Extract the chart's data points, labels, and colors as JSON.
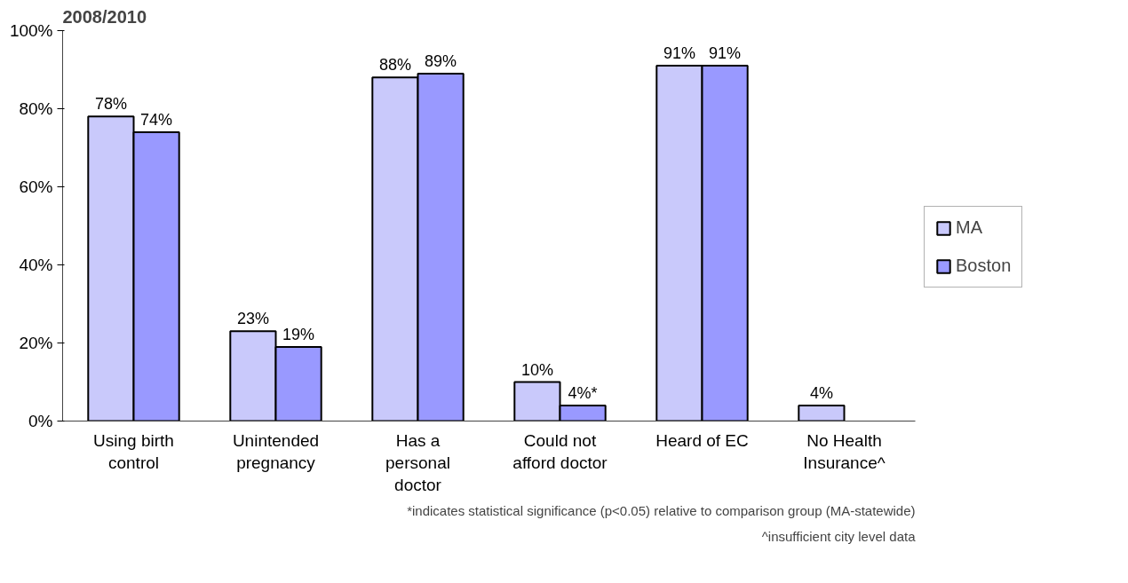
{
  "chart_data": {
    "type": "bar",
    "title": "2008/2010",
    "categories": [
      "Using birth control",
      "Unintended pregnancy",
      "Has a personal doctor",
      "Could not afford doctor",
      "Heard of EC",
      "No Health Insurance^"
    ],
    "series": [
      {
        "name": "MA",
        "color": "#c9c9fb",
        "values": [
          78,
          23,
          88,
          10,
          91,
          4
        ],
        "value_labels": [
          "78%",
          "23%",
          "88%",
          "10%",
          "91%",
          "4%"
        ]
      },
      {
        "name": "Boston",
        "color": "#9999ff",
        "values": [
          74,
          19,
          89,
          4,
          91,
          null
        ],
        "value_labels": [
          "74%",
          "19%",
          "89%",
          "4%*",
          "91%",
          null
        ]
      }
    ],
    "ylim": [
      0,
      100
    ],
    "yticks": [
      {
        "value": 0,
        "label": "0%"
      },
      {
        "value": 20,
        "label": "20%"
      },
      {
        "value": 40,
        "label": "40%"
      },
      {
        "value": 60,
        "label": "60%"
      },
      {
        "value": 80,
        "label": "80%"
      },
      {
        "value": 100,
        "label": "100%"
      }
    ],
    "grid": false,
    "legend": "right",
    "annotations": [
      "*indicates statistical significance (p<0.05) relative to comparison group (MA-statewide)",
      "^insufficient city level data"
    ]
  }
}
